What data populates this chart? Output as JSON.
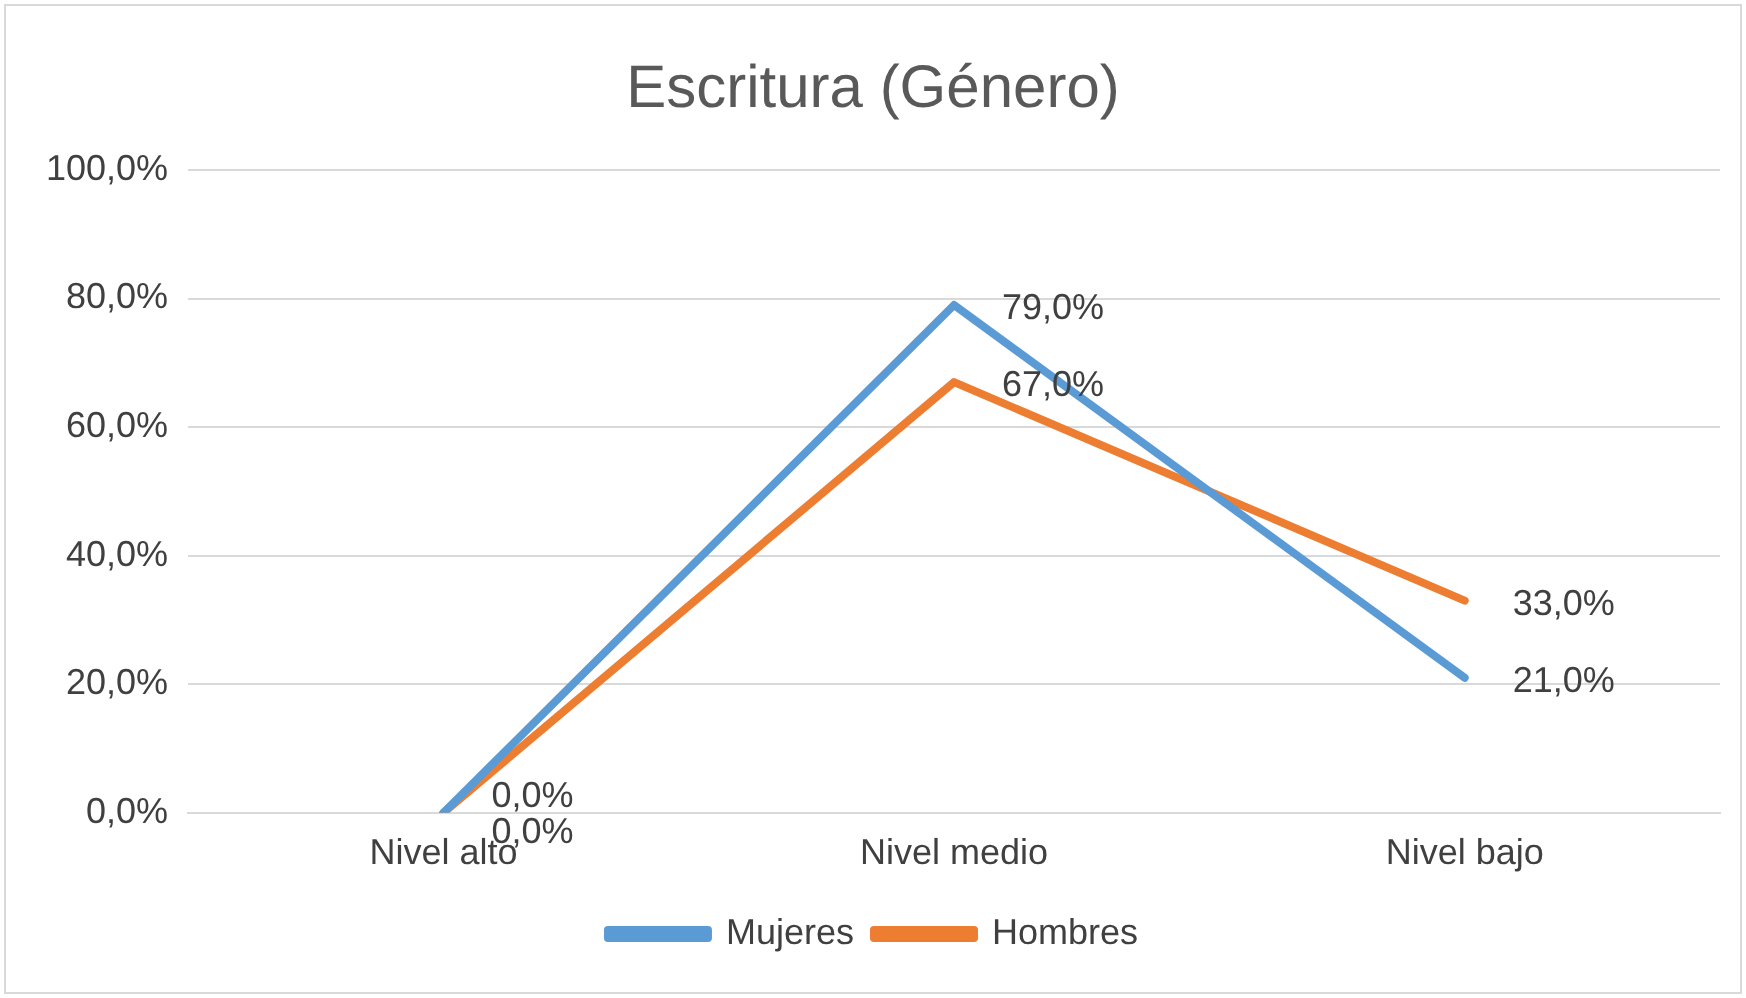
{
  "chart_data": {
    "type": "line",
    "title": "Escritura (Género)",
    "categories": [
      "Nivel alto",
      "Nivel medio",
      "Nivel bajo"
    ],
    "series": [
      {
        "name": "Mujeres",
        "color": "#5b9bd5",
        "values": [
          0,
          79,
          21
        ],
        "value_labels": [
          "0,0%",
          "79,0%",
          "21,0%"
        ]
      },
      {
        "name": "Hombres",
        "color": "#ed7d31",
        "values": [
          0,
          67,
          33
        ],
        "value_labels": [
          "0,0%",
          "67,0%",
          "33,0%"
        ]
      }
    ],
    "ylim": [
      0,
      100
    ],
    "yticks": [
      {
        "value": 0,
        "label": "0,0%"
      },
      {
        "value": 20,
        "label": "20,0%"
      },
      {
        "value": 40,
        "label": "40,0%"
      },
      {
        "value": 60,
        "label": "60,0%"
      },
      {
        "value": 80,
        "label": "80,0%"
      },
      {
        "value": 100,
        "label": "100,0%"
      }
    ],
    "grid": "y",
    "legend": "bottom",
    "marker": "none",
    "line_style": "solid"
  }
}
